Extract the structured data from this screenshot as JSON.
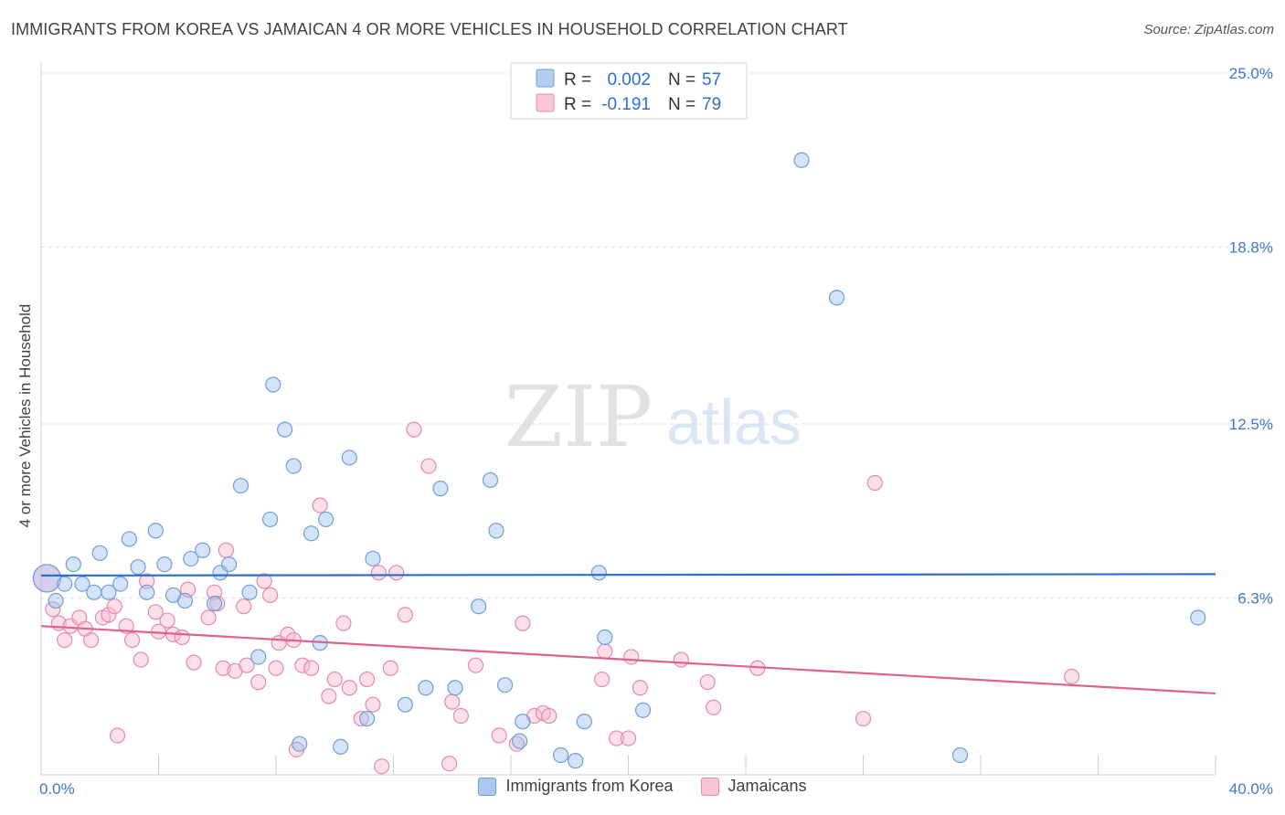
{
  "header": {
    "title": "IMMIGRANTS FROM KOREA VS JAMAICAN 4 OR MORE VEHICLES IN HOUSEHOLD CORRELATION CHART",
    "source": "Source: ZipAtlas.com"
  },
  "watermark": {
    "zip": "ZIP",
    "atlas": "atlas"
  },
  "chart_data": {
    "type": "scatter",
    "title": "IMMIGRANTS FROM KOREA VS JAMAICAN 4 OR MORE VEHICLES IN HOUSEHOLD CORRELATION CHART",
    "xlabel": "",
    "ylabel": "4 or more Vehicles in Household",
    "xlim": [
      0,
      40
    ],
    "ylim": [
      0,
      25.0
    ],
    "x_tick_labels": [
      "0.0%",
      "40.0%"
    ],
    "y_ticks": [
      6.3,
      12.5,
      18.8,
      25.0
    ],
    "y_tick_labels": [
      "6.3%",
      "12.5%",
      "18.8%",
      "25.0%"
    ],
    "grid": true,
    "legend_position": "top-center",
    "legend": [
      {
        "r_label": "R =",
        "r_value": "0.002",
        "n_label": "N =",
        "n_value": "57"
      },
      {
        "r_label": "R =",
        "r_value": "-0.191",
        "n_label": "N =",
        "n_value": "79"
      }
    ],
    "series": [
      {
        "name": "Immigrants from Korea",
        "color": "#9fc2ee",
        "edge": "#6e9fd9",
        "line_color": "#2f6fcc",
        "trend": [
          [
            0,
            7.1
          ],
          [
            40,
            7.15
          ]
        ],
        "points": [
          [
            0.2,
            7.0
          ],
          [
            0.5,
            6.2
          ],
          [
            0.8,
            6.8
          ],
          [
            1.1,
            7.5
          ],
          [
            1.4,
            6.8
          ],
          [
            1.8,
            6.5
          ],
          [
            2.0,
            7.9
          ],
          [
            2.3,
            6.5
          ],
          [
            2.7,
            6.8
          ],
          [
            3.0,
            8.4
          ],
          [
            3.3,
            7.4
          ],
          [
            3.6,
            6.5
          ],
          [
            3.9,
            8.7
          ],
          [
            4.2,
            7.5
          ],
          [
            4.5,
            6.4
          ],
          [
            4.9,
            6.2
          ],
          [
            5.1,
            7.7
          ],
          [
            5.5,
            8.0
          ],
          [
            5.9,
            6.1
          ],
          [
            6.1,
            7.2
          ],
          [
            6.4,
            7.5
          ],
          [
            6.8,
            10.3
          ],
          [
            7.1,
            6.5
          ],
          [
            7.4,
            4.2
          ],
          [
            7.8,
            9.1
          ],
          [
            7.9,
            13.9
          ],
          [
            8.3,
            12.3
          ],
          [
            8.6,
            11.0
          ],
          [
            8.8,
            1.1
          ],
          [
            9.2,
            8.6
          ],
          [
            9.5,
            4.7
          ],
          [
            9.7,
            9.1
          ],
          [
            10.2,
            1.0
          ],
          [
            10.5,
            11.3
          ],
          [
            11.1,
            2.0
          ],
          [
            11.3,
            7.7
          ],
          [
            12.4,
            2.5
          ],
          [
            13.1,
            3.1
          ],
          [
            13.6,
            10.2
          ],
          [
            14.1,
            3.1
          ],
          [
            14.9,
            6.0
          ],
          [
            15.3,
            10.5
          ],
          [
            15.5,
            8.7
          ],
          [
            15.8,
            3.2
          ],
          [
            16.3,
            1.2
          ],
          [
            16.4,
            1.9
          ],
          [
            17.7,
            0.7
          ],
          [
            18.2,
            0.5
          ],
          [
            18.5,
            1.9
          ],
          [
            19.0,
            7.2
          ],
          [
            19.2,
            4.9
          ],
          [
            20.5,
            2.3
          ],
          [
            25.9,
            21.9
          ],
          [
            27.1,
            17.0
          ],
          [
            31.3,
            0.7
          ],
          [
            39.4,
            5.6
          ],
          [
            17.3,
            24.4
          ]
        ]
      },
      {
        "name": "Jamaicans",
        "color": "#f6b9cf",
        "edge": "#e58aad",
        "line_color": "#e0608e",
        "trend": [
          [
            0,
            5.3
          ],
          [
            40,
            2.9
          ]
        ],
        "points": [
          [
            0.2,
            7.0
          ],
          [
            0.4,
            5.9
          ],
          [
            0.6,
            5.4
          ],
          [
            0.8,
            4.8
          ],
          [
            1.0,
            5.3
          ],
          [
            1.3,
            5.6
          ],
          [
            1.5,
            5.2
          ],
          [
            1.7,
            4.8
          ],
          [
            2.1,
            5.6
          ],
          [
            2.3,
            5.7
          ],
          [
            2.5,
            6.0
          ],
          [
            2.6,
            1.4
          ],
          [
            2.9,
            5.3
          ],
          [
            3.1,
            4.8
          ],
          [
            3.4,
            4.1
          ],
          [
            3.6,
            6.9
          ],
          [
            3.9,
            5.8
          ],
          [
            4.0,
            5.1
          ],
          [
            4.3,
            5.5
          ],
          [
            4.5,
            5.0
          ],
          [
            4.8,
            4.9
          ],
          [
            5.0,
            6.6
          ],
          [
            5.2,
            4.0
          ],
          [
            5.7,
            5.6
          ],
          [
            5.9,
            6.5
          ],
          [
            6.0,
            6.1
          ],
          [
            6.2,
            3.8
          ],
          [
            6.3,
            8.0
          ],
          [
            6.6,
            3.7
          ],
          [
            6.9,
            6.0
          ],
          [
            7.0,
            3.9
          ],
          [
            7.4,
            3.3
          ],
          [
            7.6,
            6.9
          ],
          [
            7.8,
            6.4
          ],
          [
            8.0,
            3.8
          ],
          [
            8.1,
            4.7
          ],
          [
            8.4,
            5.0
          ],
          [
            8.6,
            4.8
          ],
          [
            8.7,
            0.9
          ],
          [
            8.9,
            3.9
          ],
          [
            9.2,
            3.8
          ],
          [
            9.5,
            9.6
          ],
          [
            9.8,
            2.8
          ],
          [
            10.0,
            3.4
          ],
          [
            10.3,
            5.4
          ],
          [
            10.5,
            3.1
          ],
          [
            10.9,
            2.0
          ],
          [
            11.1,
            3.4
          ],
          [
            11.3,
            2.5
          ],
          [
            11.5,
            7.2
          ],
          [
            11.6,
            0.3
          ],
          [
            11.9,
            3.8
          ],
          [
            12.1,
            7.2
          ],
          [
            12.4,
            5.7
          ],
          [
            12.7,
            12.3
          ],
          [
            13.2,
            11.0
          ],
          [
            13.9,
            0.4
          ],
          [
            14.0,
            2.6
          ],
          [
            14.3,
            2.1
          ],
          [
            14.8,
            3.9
          ],
          [
            15.6,
            1.4
          ],
          [
            16.2,
            1.1
          ],
          [
            16.4,
            5.4
          ],
          [
            16.8,
            2.1
          ],
          [
            17.1,
            2.2
          ],
          [
            17.3,
            2.1
          ],
          [
            19.1,
            3.4
          ],
          [
            19.2,
            4.4
          ],
          [
            19.6,
            1.3
          ],
          [
            20.0,
            1.3
          ],
          [
            20.1,
            4.2
          ],
          [
            20.4,
            3.1
          ],
          [
            21.8,
            4.1
          ],
          [
            22.7,
            3.3
          ],
          [
            22.9,
            2.4
          ],
          [
            24.4,
            3.8
          ],
          [
            28.0,
            2.0
          ],
          [
            28.4,
            10.4
          ],
          [
            35.1,
            3.5
          ]
        ]
      }
    ]
  },
  "bottom_legend": [
    {
      "label": "Immigrants from Korea",
      "color": "#aac8f0",
      "edge": "#6e9fd9"
    },
    {
      "label": "Jamaicans",
      "color": "#f8c4d6",
      "edge": "#e58aad"
    }
  ]
}
